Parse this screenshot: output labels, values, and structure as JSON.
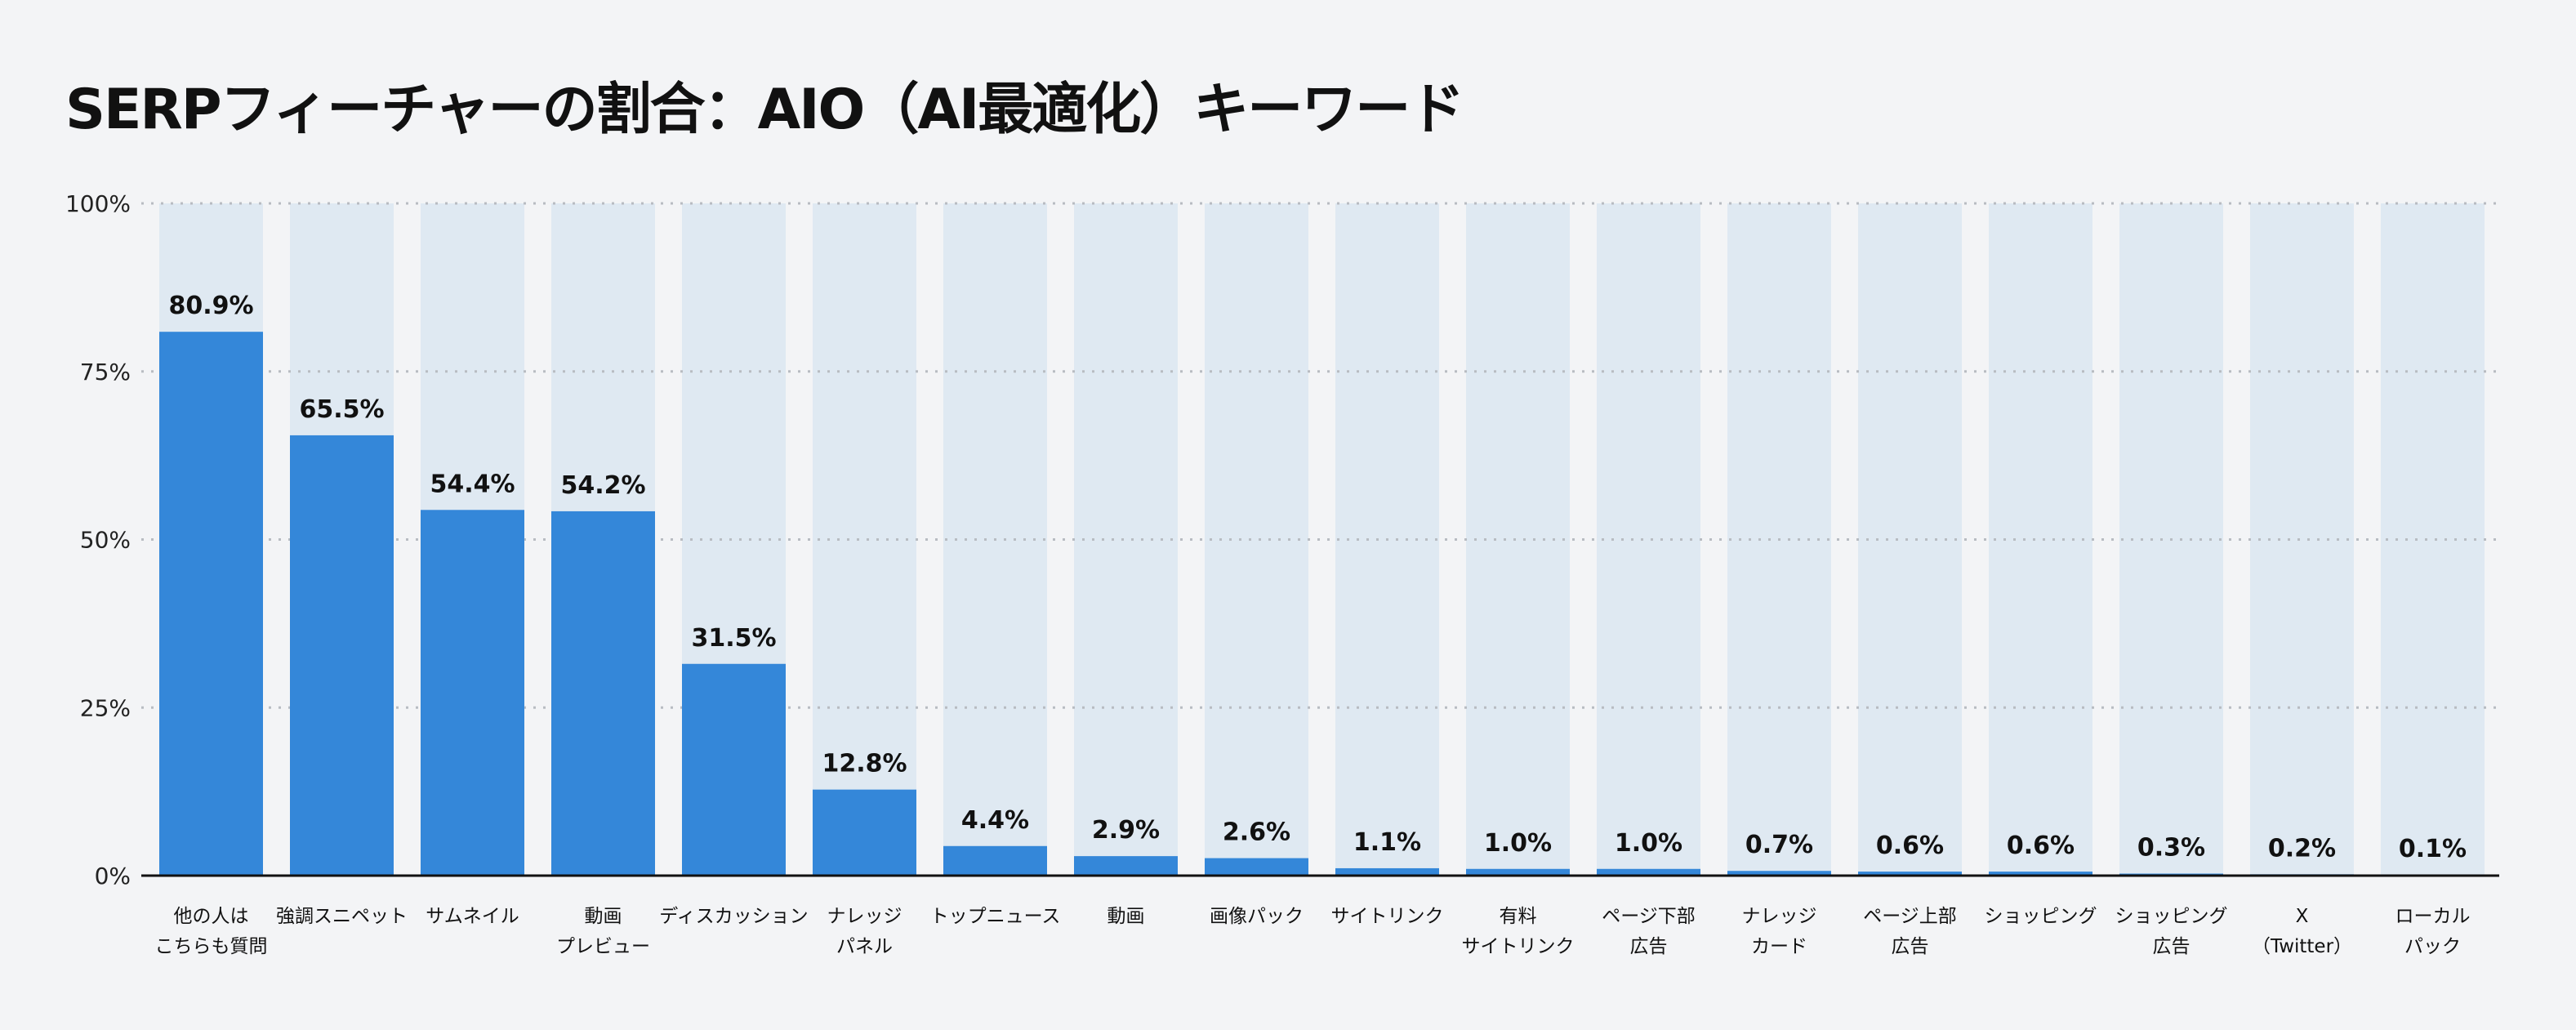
{
  "chart_data": {
    "type": "bar",
    "title": "SERPフィーチャーの割合：AIO（AI最適化）キーワード",
    "xlabel": "",
    "ylabel": "",
    "ylim": [
      0,
      100
    ],
    "yticks": [
      "0%",
      "25%",
      "50%",
      "75%",
      "100%"
    ],
    "grid": true,
    "categories": [
      [
        "他の人は",
        "こちらも質問"
      ],
      [
        "強調スニペット"
      ],
      [
        "サムネイル"
      ],
      [
        "動画",
        "プレビュー"
      ],
      [
        "ディスカッション"
      ],
      [
        "ナレッジ",
        "パネル"
      ],
      [
        "トップニュース"
      ],
      [
        "動画"
      ],
      [
        "画像パック"
      ],
      [
        "サイトリンク"
      ],
      [
        "有料",
        "サイトリンク"
      ],
      [
        "ページ下部",
        "広告"
      ],
      [
        "ナレッジ",
        "カード"
      ],
      [
        "ページ上部",
        "広告"
      ],
      [
        "ショッピング"
      ],
      [
        "ショッピング",
        "広告"
      ],
      [
        "X",
        "（Twitter）"
      ],
      [
        "ローカル",
        "パック"
      ]
    ],
    "values": [
      80.9,
      65.5,
      54.4,
      54.2,
      31.5,
      12.8,
      4.4,
      2.9,
      2.6,
      1.1,
      1.0,
      1.0,
      0.7,
      0.6,
      0.6,
      0.3,
      0.2,
      0.1
    ],
    "data_labels": [
      "80.9%",
      "65.5%",
      "54.4%",
      "54.2%",
      "31.5%",
      "12.8%",
      "4.4%",
      "2.9%",
      "2.6%",
      "1.1%",
      "1.0%",
      "1.0%",
      "0.7%",
      "0.6%",
      "0.6%",
      "0.3%",
      "0.2%",
      "0.1%"
    ],
    "colors": {
      "bar": "#3487d9",
      "background_bar": "#dfe9f2",
      "grid": "#b8bcc2",
      "axis": "#111111"
    }
  }
}
